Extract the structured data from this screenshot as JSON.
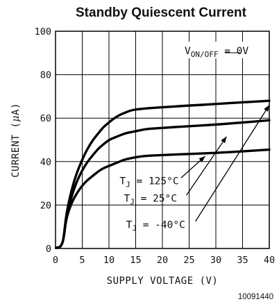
{
  "chart_data": {
    "type": "line",
    "title": "Standby Quiescent Current",
    "xlabel": "SUPPLY VOLTAGE (V)",
    "ylabel_prefix": "CURRENT (",
    "ylabel_mu": "μ",
    "ylabel_suffix": "A)",
    "xlim": [
      0,
      40
    ],
    "ylim": [
      0,
      100
    ],
    "x_ticks": [
      "0",
      "5",
      "10",
      "15",
      "20",
      "25",
      "30",
      "35",
      "40"
    ],
    "y_ticks": [
      "0",
      "20",
      "40",
      "60",
      "80",
      "100"
    ],
    "grid": true,
    "condition": {
      "main": "V",
      "sub": "ON/",
      "sub_overline": "OFF",
      "suffix": " = 0V"
    },
    "series": [
      {
        "key": "t125",
        "label_main": "T",
        "label_sub": "J",
        "label_value": " = 125°C",
        "x": [
          1.5,
          2,
          3,
          4,
          5,
          6,
          7,
          8,
          9,
          10,
          11,
          12,
          13,
          14,
          15,
          17,
          20,
          25,
          30,
          35,
          40
        ],
        "y": [
          4,
          16,
          27,
          35,
          41,
          46,
          50,
          53,
          56,
          58,
          60,
          61.5,
          62.5,
          63.5,
          64,
          64.5,
          65,
          65.8,
          66.5,
          67.3,
          68
        ]
      },
      {
        "key": "t25",
        "label_main": "T",
        "label_sub": "J",
        "label_value": " = 25°C",
        "x": [
          1.5,
          2,
          3,
          4,
          5,
          6,
          7,
          8,
          9,
          10,
          11,
          12,
          13,
          14,
          15,
          17,
          20,
          25,
          30,
          35,
          40
        ],
        "y": [
          4,
          15,
          24,
          31,
          36,
          40,
          43,
          46,
          48,
          50,
          51,
          52,
          53,
          53.5,
          54,
          55,
          55.5,
          56.3,
          57,
          58,
          59
        ]
      },
      {
        "key": "tm40",
        "label_main": "T",
        "label_sub": "J",
        "label_value": " = -40°C",
        "x": [
          1.5,
          2,
          3,
          4,
          5,
          6,
          7,
          8,
          9,
          10,
          11,
          12,
          13,
          14,
          15,
          17,
          20,
          25,
          30,
          35,
          40
        ],
        "y": [
          4,
          14,
          21,
          25.5,
          29,
          31.5,
          33.5,
          35.5,
          37,
          38,
          39,
          40,
          41,
          41.5,
          42,
          42.7,
          43,
          43.5,
          44,
          44.7,
          45.5
        ]
      }
    ]
  },
  "figure_id": "10091440"
}
